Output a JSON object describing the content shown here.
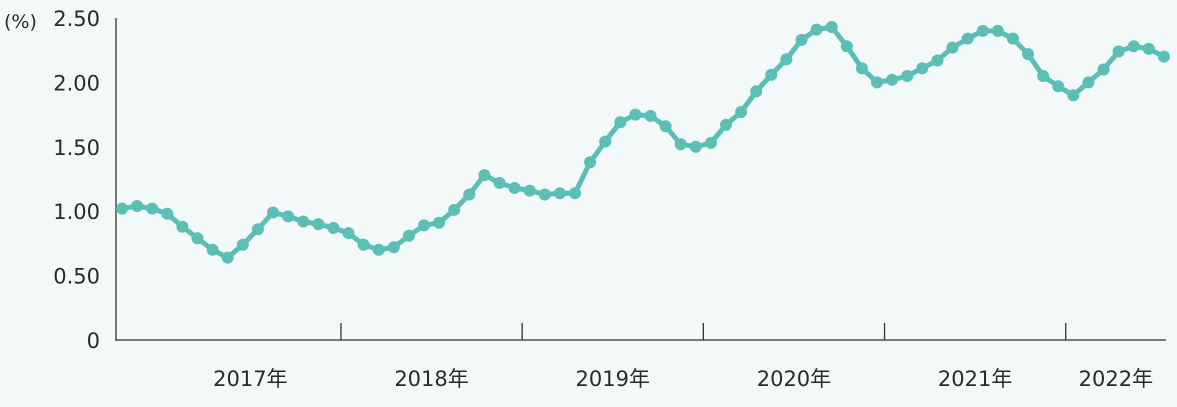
{
  "chart_data": {
    "type": "line",
    "unit_label": "(%)",
    "ylim": [
      0,
      2.5
    ],
    "yticks": [
      "0",
      "0.50",
      "1.00",
      "1.50",
      "2.00",
      "2.50"
    ],
    "x_labels": [
      "2017年",
      "2018年",
      "2019年",
      "2020年",
      "2021年",
      "2022年"
    ],
    "x_start": "2016-10",
    "grid": false,
    "line_color": "#5bbfb5",
    "series": [
      {
        "values": [
          1.02,
          1.04,
          1.02,
          0.98,
          0.88,
          0.79,
          0.7,
          0.64,
          0.74,
          0.86,
          0.99,
          0.96,
          0.92,
          0.9,
          0.87,
          0.83,
          0.74,
          0.7,
          0.72,
          0.81,
          0.89,
          0.91,
          1.01,
          1.13,
          1.28,
          1.22,
          1.18,
          1.16,
          1.13,
          1.14,
          1.14,
          1.38,
          1.54,
          1.69,
          1.75,
          1.74,
          1.66,
          1.52,
          1.5,
          1.53,
          1.67,
          1.77,
          1.93,
          2.06,
          2.18,
          2.33,
          2.41,
          2.43,
          2.28,
          2.11,
          2.0,
          2.02,
          2.05,
          2.11,
          2.17,
          2.27,
          2.34,
          2.4,
          2.4,
          2.34,
          2.22,
          2.05,
          1.97,
          1.9,
          2.0,
          2.1,
          2.24,
          2.28,
          2.26,
          2.2
        ]
      }
    ]
  }
}
